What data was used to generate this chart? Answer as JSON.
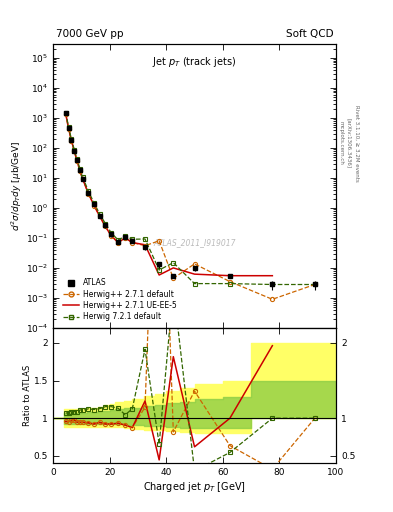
{
  "title_top": "7000 GeV pp",
  "title_right": "Soft QCD",
  "plot_title": "Jet $p_T$ (track jets)",
  "xlabel": "Charged jet $p_T$ [GeV]",
  "ylabel_main": "$d^2\\sigma/dp_{T}dy$ [$\\mu$b/GeV]",
  "ylabel_ratio": "Ratio to ATLAS",
  "rivet_label": "Rivet 3.1.10, ≥ 3.2M events",
  "arxiv_label": "[arXiv:1306.3436]",
  "mcplots_label": "mcplots.cern.ch",
  "watermark": "ATLAS_2011_I919017",
  "atlas_x": [
    4.5,
    5.5,
    6.5,
    7.5,
    8.5,
    9.5,
    10.5,
    12.5,
    14.5,
    16.5,
    18.5,
    20.5,
    23.0,
    25.5,
    28.0,
    32.5,
    37.5,
    42.5,
    50.0,
    62.5,
    77.5,
    92.5
  ],
  "atlas_y": [
    1400,
    450,
    180,
    80,
    38,
    18,
    9.5,
    3.2,
    1.3,
    0.55,
    0.26,
    0.13,
    0.075,
    0.11,
    0.08,
    0.048,
    0.013,
    0.0055,
    0.01,
    0.0055,
    0.0028,
    0.0028
  ],
  "atlas_yerr_lo": [
    200,
    60,
    25,
    11,
    5,
    2.5,
    1.3,
    0.45,
    0.18,
    0.07,
    0.04,
    0.02,
    0.012,
    0.015,
    0.012,
    0.008,
    0.003,
    0.001,
    0.002,
    0.001,
    0.001,
    0.001
  ],
  "atlas_yerr_hi": [
    200,
    60,
    25,
    11,
    5,
    2.5,
    1.3,
    0.45,
    0.18,
    0.07,
    0.04,
    0.02,
    0.012,
    0.015,
    0.012,
    0.008,
    0.003,
    0.001,
    0.002,
    0.001,
    0.001,
    0.001
  ],
  "hw271_x": [
    4.5,
    5.5,
    6.5,
    7.5,
    8.5,
    9.5,
    10.5,
    12.5,
    14.5,
    16.5,
    18.5,
    20.5,
    23.0,
    25.5,
    28.0,
    32.5,
    37.5,
    42.5,
    50.0,
    62.5,
    77.5,
    92.5
  ],
  "hw271_y": [
    1340,
    430,
    175,
    78,
    36,
    17,
    9.0,
    3.0,
    1.2,
    0.52,
    0.24,
    0.12,
    0.07,
    0.1,
    0.07,
    0.055,
    0.08,
    0.0045,
    0.0136,
    0.0035,
    0.0009,
    0.0028
  ],
  "hw271uee5_x": [
    4.5,
    5.5,
    6.5,
    7.5,
    8.5,
    9.5,
    10.5,
    12.5,
    14.5,
    16.5,
    18.5,
    20.5,
    23.0,
    25.5,
    28.0,
    32.5,
    37.5,
    42.5,
    50.0,
    62.5,
    77.5
  ],
  "hw271uee5_y": [
    1340,
    430,
    175,
    78,
    36,
    17,
    9.0,
    3.0,
    1.2,
    0.52,
    0.24,
    0.12,
    0.07,
    0.1,
    0.07,
    0.059,
    0.0058,
    0.01,
    0.0062,
    0.0055,
    0.0055
  ],
  "hw721_x": [
    4.5,
    5.5,
    6.5,
    7.5,
    8.5,
    9.5,
    10.5,
    12.5,
    14.5,
    16.5,
    18.5,
    20.5,
    23.0,
    25.5,
    28.0,
    32.5,
    37.5,
    42.5,
    50.0,
    62.5,
    77.5,
    92.5
  ],
  "hw721_y": [
    1500,
    480,
    195,
    87,
    41,
    20,
    10.5,
    3.6,
    1.45,
    0.62,
    0.3,
    0.15,
    0.085,
    0.115,
    0.09,
    0.092,
    0.0085,
    0.015,
    0.003,
    0.003,
    0.0028,
    0.0028
  ],
  "ratio_hw271_x": [
    4.5,
    5.5,
    6.5,
    7.5,
    8.5,
    9.5,
    10.5,
    12.5,
    14.5,
    16.5,
    18.5,
    20.5,
    23.0,
    25.5,
    28.0,
    32.5,
    37.5,
    42.5,
    50.0,
    62.5,
    77.5,
    92.5
  ],
  "ratio_hw271_y": [
    0.957,
    0.956,
    0.972,
    0.975,
    0.947,
    0.944,
    0.947,
    0.938,
    0.923,
    0.945,
    0.923,
    0.923,
    0.933,
    0.909,
    0.875,
    1.146,
    6.15,
    0.818,
    1.36,
    0.636,
    0.321,
    1.0
  ],
  "ratio_hw271uee5_x": [
    4.5,
    5.5,
    6.5,
    7.5,
    8.5,
    9.5,
    10.5,
    12.5,
    14.5,
    16.5,
    18.5,
    20.5,
    23.0,
    25.5,
    28.0,
    32.5,
    37.5,
    42.5,
    50.0,
    62.5,
    77.5
  ],
  "ratio_hw271uee5_y": [
    0.957,
    0.956,
    0.972,
    0.975,
    0.947,
    0.944,
    0.947,
    0.938,
    0.923,
    0.945,
    0.923,
    0.923,
    0.933,
    0.909,
    0.875,
    1.229,
    0.446,
    1.818,
    0.62,
    1.0,
    1.964
  ],
  "ratio_hw721_x": [
    4.5,
    5.5,
    6.5,
    7.5,
    8.5,
    9.5,
    10.5,
    12.5,
    14.5,
    16.5,
    18.5,
    20.5,
    23.0,
    25.5,
    28.0,
    32.5,
    37.5,
    42.5,
    50.0,
    62.5,
    77.5,
    92.5
  ],
  "ratio_hw721_y": [
    1.071,
    1.067,
    1.083,
    1.088,
    1.079,
    1.111,
    1.105,
    1.125,
    1.115,
    1.127,
    1.154,
    1.154,
    1.133,
    1.045,
    1.125,
    1.917,
    0.654,
    2.727,
    0.3,
    0.545,
    1.0,
    1.0
  ],
  "color_atlas": "#000000",
  "color_hw271": "#cc6600",
  "color_hw271uee5": "#cc0000",
  "color_hw721": "#336600",
  "bg_color": "#ffffff",
  "band_yellow": "#ffff66",
  "band_green": "#88cc44",
  "xlim": [
    0,
    100
  ],
  "ylim_main": [
    0.0001,
    300000.0
  ],
  "ylim_ratio": [
    0.4,
    2.2
  ],
  "band_x": [
    0,
    4,
    6,
    8,
    10,
    12,
    14,
    16,
    18,
    20,
    22,
    25,
    28,
    32,
    36,
    40,
    45,
    50,
    60,
    70,
    80,
    90,
    100
  ],
  "yel_lo": [
    1.0,
    0.88,
    0.88,
    0.88,
    0.88,
    0.88,
    0.88,
    0.88,
    0.88,
    0.88,
    0.88,
    0.87,
    0.86,
    0.85,
    0.84,
    0.83,
    0.82,
    0.8,
    0.8,
    1.0,
    1.0,
    1.0,
    1.0
  ],
  "yel_hi": [
    1.0,
    1.12,
    1.12,
    1.12,
    1.12,
    1.13,
    1.14,
    1.15,
    1.17,
    1.19,
    1.21,
    1.23,
    1.26,
    1.29,
    1.32,
    1.36,
    1.4,
    1.45,
    1.5,
    2.0,
    2.0,
    2.0,
    2.0
  ],
  "grn_lo": [
    1.0,
    0.92,
    0.92,
    0.92,
    0.92,
    0.92,
    0.92,
    0.92,
    0.92,
    0.92,
    0.92,
    0.91,
    0.91,
    0.9,
    0.89,
    0.88,
    0.87,
    0.87,
    0.87,
    1.0,
    1.0,
    1.0,
    1.0
  ],
  "grn_hi": [
    1.0,
    1.07,
    1.07,
    1.07,
    1.07,
    1.08,
    1.08,
    1.09,
    1.1,
    1.11,
    1.12,
    1.13,
    1.14,
    1.16,
    1.18,
    1.2,
    1.22,
    1.25,
    1.28,
    1.5,
    1.5,
    1.5,
    1.5
  ]
}
